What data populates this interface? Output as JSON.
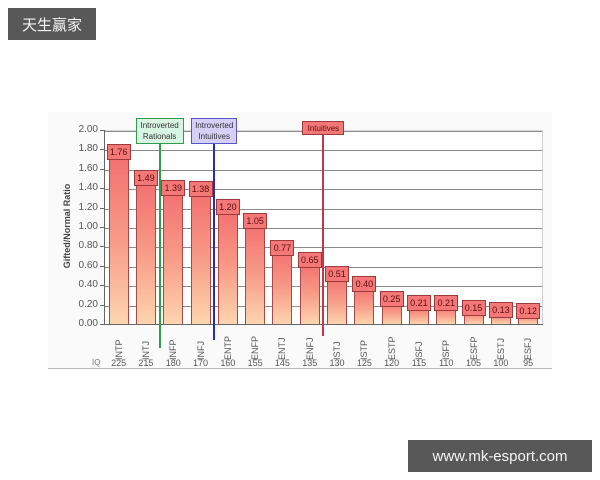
{
  "badges": {
    "top_left": "天生赢家",
    "bottom_right": "www.mk-esport.com"
  },
  "colors": {
    "badge_bg": "#585858",
    "bar_top": "#f36f6f",
    "bar_bottom": "#fdd5ae",
    "value_box": "#f47878",
    "introverted_rationals": "#2e9e4a",
    "introverted_intuitives": "#2a2ab8",
    "intuitives": "#c0394a"
  },
  "chart_data": {
    "type": "bar",
    "title": "",
    "xlabel": "",
    "ylabel": "Gifted/Normal Ratio",
    "ylim": [
      0,
      2.0
    ],
    "yticks": [
      "0.00",
      "0.20",
      "0.40",
      "0.60",
      "0.80",
      "1.00",
      "1.20",
      "1.40",
      "1.60",
      "1.80",
      "2.00"
    ],
    "grid": true,
    "categories": [
      "INTP",
      "INTJ",
      "INFP",
      "INFJ",
      "ENTP",
      "ENFP",
      "ENTJ",
      "ENFJ",
      "ISTJ",
      "ISTP",
      "ESTP",
      "ISFJ",
      "ISFP",
      "ESFP",
      "ESTJ",
      "ESFJ"
    ],
    "values": [
      1.76,
      1.49,
      1.39,
      1.38,
      1.2,
      1.05,
      0.77,
      0.65,
      0.51,
      0.4,
      0.25,
      0.21,
      0.21,
      0.15,
      0.13,
      0.12
    ],
    "value_labels": [
      "1.76",
      "1.49",
      "1.39",
      "1.38",
      "1.20",
      "1.05",
      "0.77",
      "0.65",
      "0.51",
      "0.40",
      "0.25",
      "0.21",
      "0.21",
      "0.15",
      "0.13",
      "0.12"
    ],
    "iq_label": "IQ",
    "iq_values": [
      "225",
      "215",
      "180",
      "170",
      "160",
      "155",
      "145",
      "135",
      "130",
      "125",
      "120",
      "115",
      "110",
      "105",
      "100",
      "95"
    ],
    "annotations": [
      {
        "text_line1": "Introverted",
        "text_line2": "Rationals",
        "after_category": "INTJ"
      },
      {
        "text_line1": "Introverted",
        "text_line2": "Intuitives",
        "after_category": "INFJ"
      },
      {
        "text_line1": "Intuitives",
        "text_line2": "",
        "after_category": "ENFJ"
      }
    ]
  }
}
